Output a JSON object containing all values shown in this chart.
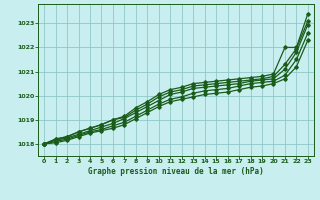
{
  "title": "Graphe pression niveau de la mer (hPa)",
  "bg_color": "#c8eef0",
  "grid_color": "#90c8c8",
  "line_color": "#1a5c1a",
  "text_color": "#1a5c1a",
  "xlim": [
    -0.5,
    23.5
  ],
  "ylim": [
    1017.5,
    1023.8
  ],
  "yticks": [
    1018,
    1019,
    1020,
    1021,
    1022,
    1023
  ],
  "xticks": [
    0,
    1,
    2,
    3,
    4,
    5,
    6,
    7,
    8,
    9,
    10,
    11,
    12,
    13,
    14,
    15,
    16,
    17,
    18,
    19,
    20,
    21,
    22,
    23
  ],
  "series": [
    [
      1018.0,
      1018.2,
      1018.3,
      1018.5,
      1018.65,
      1018.8,
      1019.0,
      1019.15,
      1019.5,
      1019.75,
      1020.05,
      1020.25,
      1020.35,
      1020.5,
      1020.55,
      1020.6,
      1020.65,
      1020.7,
      1020.75,
      1020.8,
      1020.9,
      1022.0,
      1022.0,
      1023.4
    ],
    [
      1018.0,
      1018.2,
      1018.3,
      1018.5,
      1018.65,
      1018.8,
      1019.0,
      1019.1,
      1019.4,
      1019.65,
      1019.95,
      1020.15,
      1020.25,
      1020.4,
      1020.45,
      1020.5,
      1020.55,
      1020.6,
      1020.65,
      1020.7,
      1020.8,
      1021.3,
      1021.95,
      1023.1
    ],
    [
      1018.0,
      1018.15,
      1018.25,
      1018.4,
      1018.55,
      1018.7,
      1018.85,
      1019.05,
      1019.3,
      1019.55,
      1019.8,
      1020.05,
      1020.15,
      1020.3,
      1020.35,
      1020.4,
      1020.45,
      1020.5,
      1020.6,
      1020.65,
      1020.7,
      1021.1,
      1021.8,
      1022.95
    ],
    [
      1018.0,
      1018.1,
      1018.2,
      1018.35,
      1018.5,
      1018.6,
      1018.75,
      1018.9,
      1019.15,
      1019.4,
      1019.65,
      1019.85,
      1019.95,
      1020.1,
      1020.2,
      1020.25,
      1020.3,
      1020.4,
      1020.5,
      1020.55,
      1020.6,
      1020.85,
      1021.5,
      1022.6
    ],
    [
      1018.0,
      1018.05,
      1018.15,
      1018.3,
      1018.45,
      1018.55,
      1018.65,
      1018.8,
      1019.05,
      1019.3,
      1019.55,
      1019.75,
      1019.85,
      1019.95,
      1020.05,
      1020.1,
      1020.15,
      1020.25,
      1020.35,
      1020.4,
      1020.5,
      1020.7,
      1021.2,
      1022.3
    ]
  ]
}
